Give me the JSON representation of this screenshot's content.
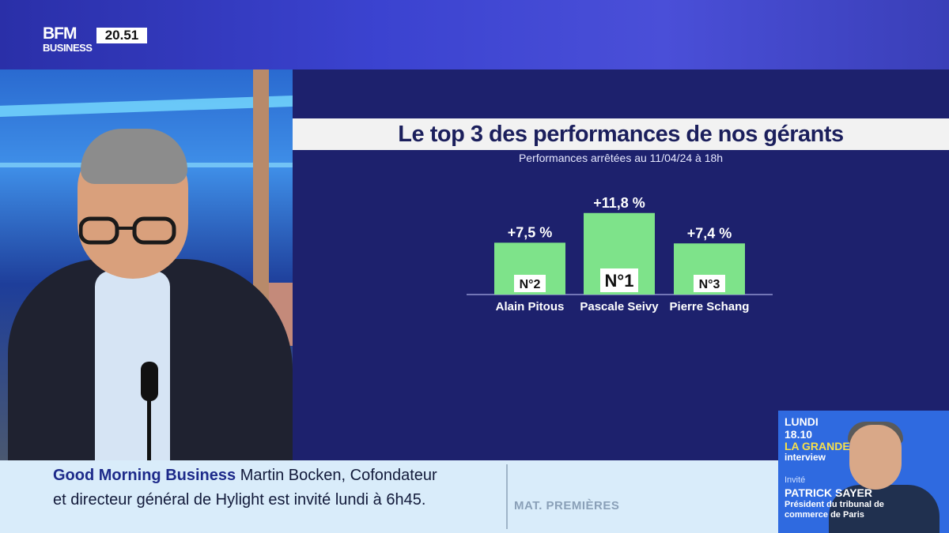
{
  "channel": {
    "logo_line1": "BFM",
    "logo_line2": "BUSINESS",
    "clock": "20.51"
  },
  "graphic": {
    "title": "Le top 3 des performances de nos gérants",
    "subtitle": "Performances arrêtées au 11/04/24 à 18h"
  },
  "chart_data": {
    "type": "bar",
    "title": "Le top 3 des performances de nos gérants",
    "subtitle": "Performances arrêtées au 11/04/24 à 18h",
    "categories": [
      "Alain Pitous",
      "Pascale Seivy",
      "Pierre Schang"
    ],
    "values": [
      7.5,
      11.8,
      7.4
    ],
    "value_labels": [
      "+7,5 %",
      "+11,8 %",
      "+7,4 %"
    ],
    "rank_labels": [
      "N°2",
      "N°1",
      "N°3"
    ],
    "bar_color": "#7ee38a",
    "text_color": "#ffffff",
    "ylim": [
      0,
      12
    ],
    "grid": false
  },
  "ticker": {
    "show": "Good Morning Business",
    "line1_rest": "Martin Bocken, Cofondateur",
    "line2": "et directeur général de Hylight est invité lundi à 6h45.",
    "tag": "MAT. PREMIÈRES"
  },
  "promo": {
    "day": "LUNDI",
    "date": "18.10",
    "title_line1": "LA GRANDE",
    "title_line2": "interview",
    "invite_label": "Invité",
    "guest_name": "PATRICK SAYER",
    "guest_role": "Président du tribunal de commerce de Paris"
  },
  "colors": {
    "panel_bg": "#1d216d",
    "bar": "#7ee38a",
    "title_bar": "#f2f2f2",
    "ticker_bg": "#d9ecfa",
    "promo_bg": "#2f6ae0"
  }
}
